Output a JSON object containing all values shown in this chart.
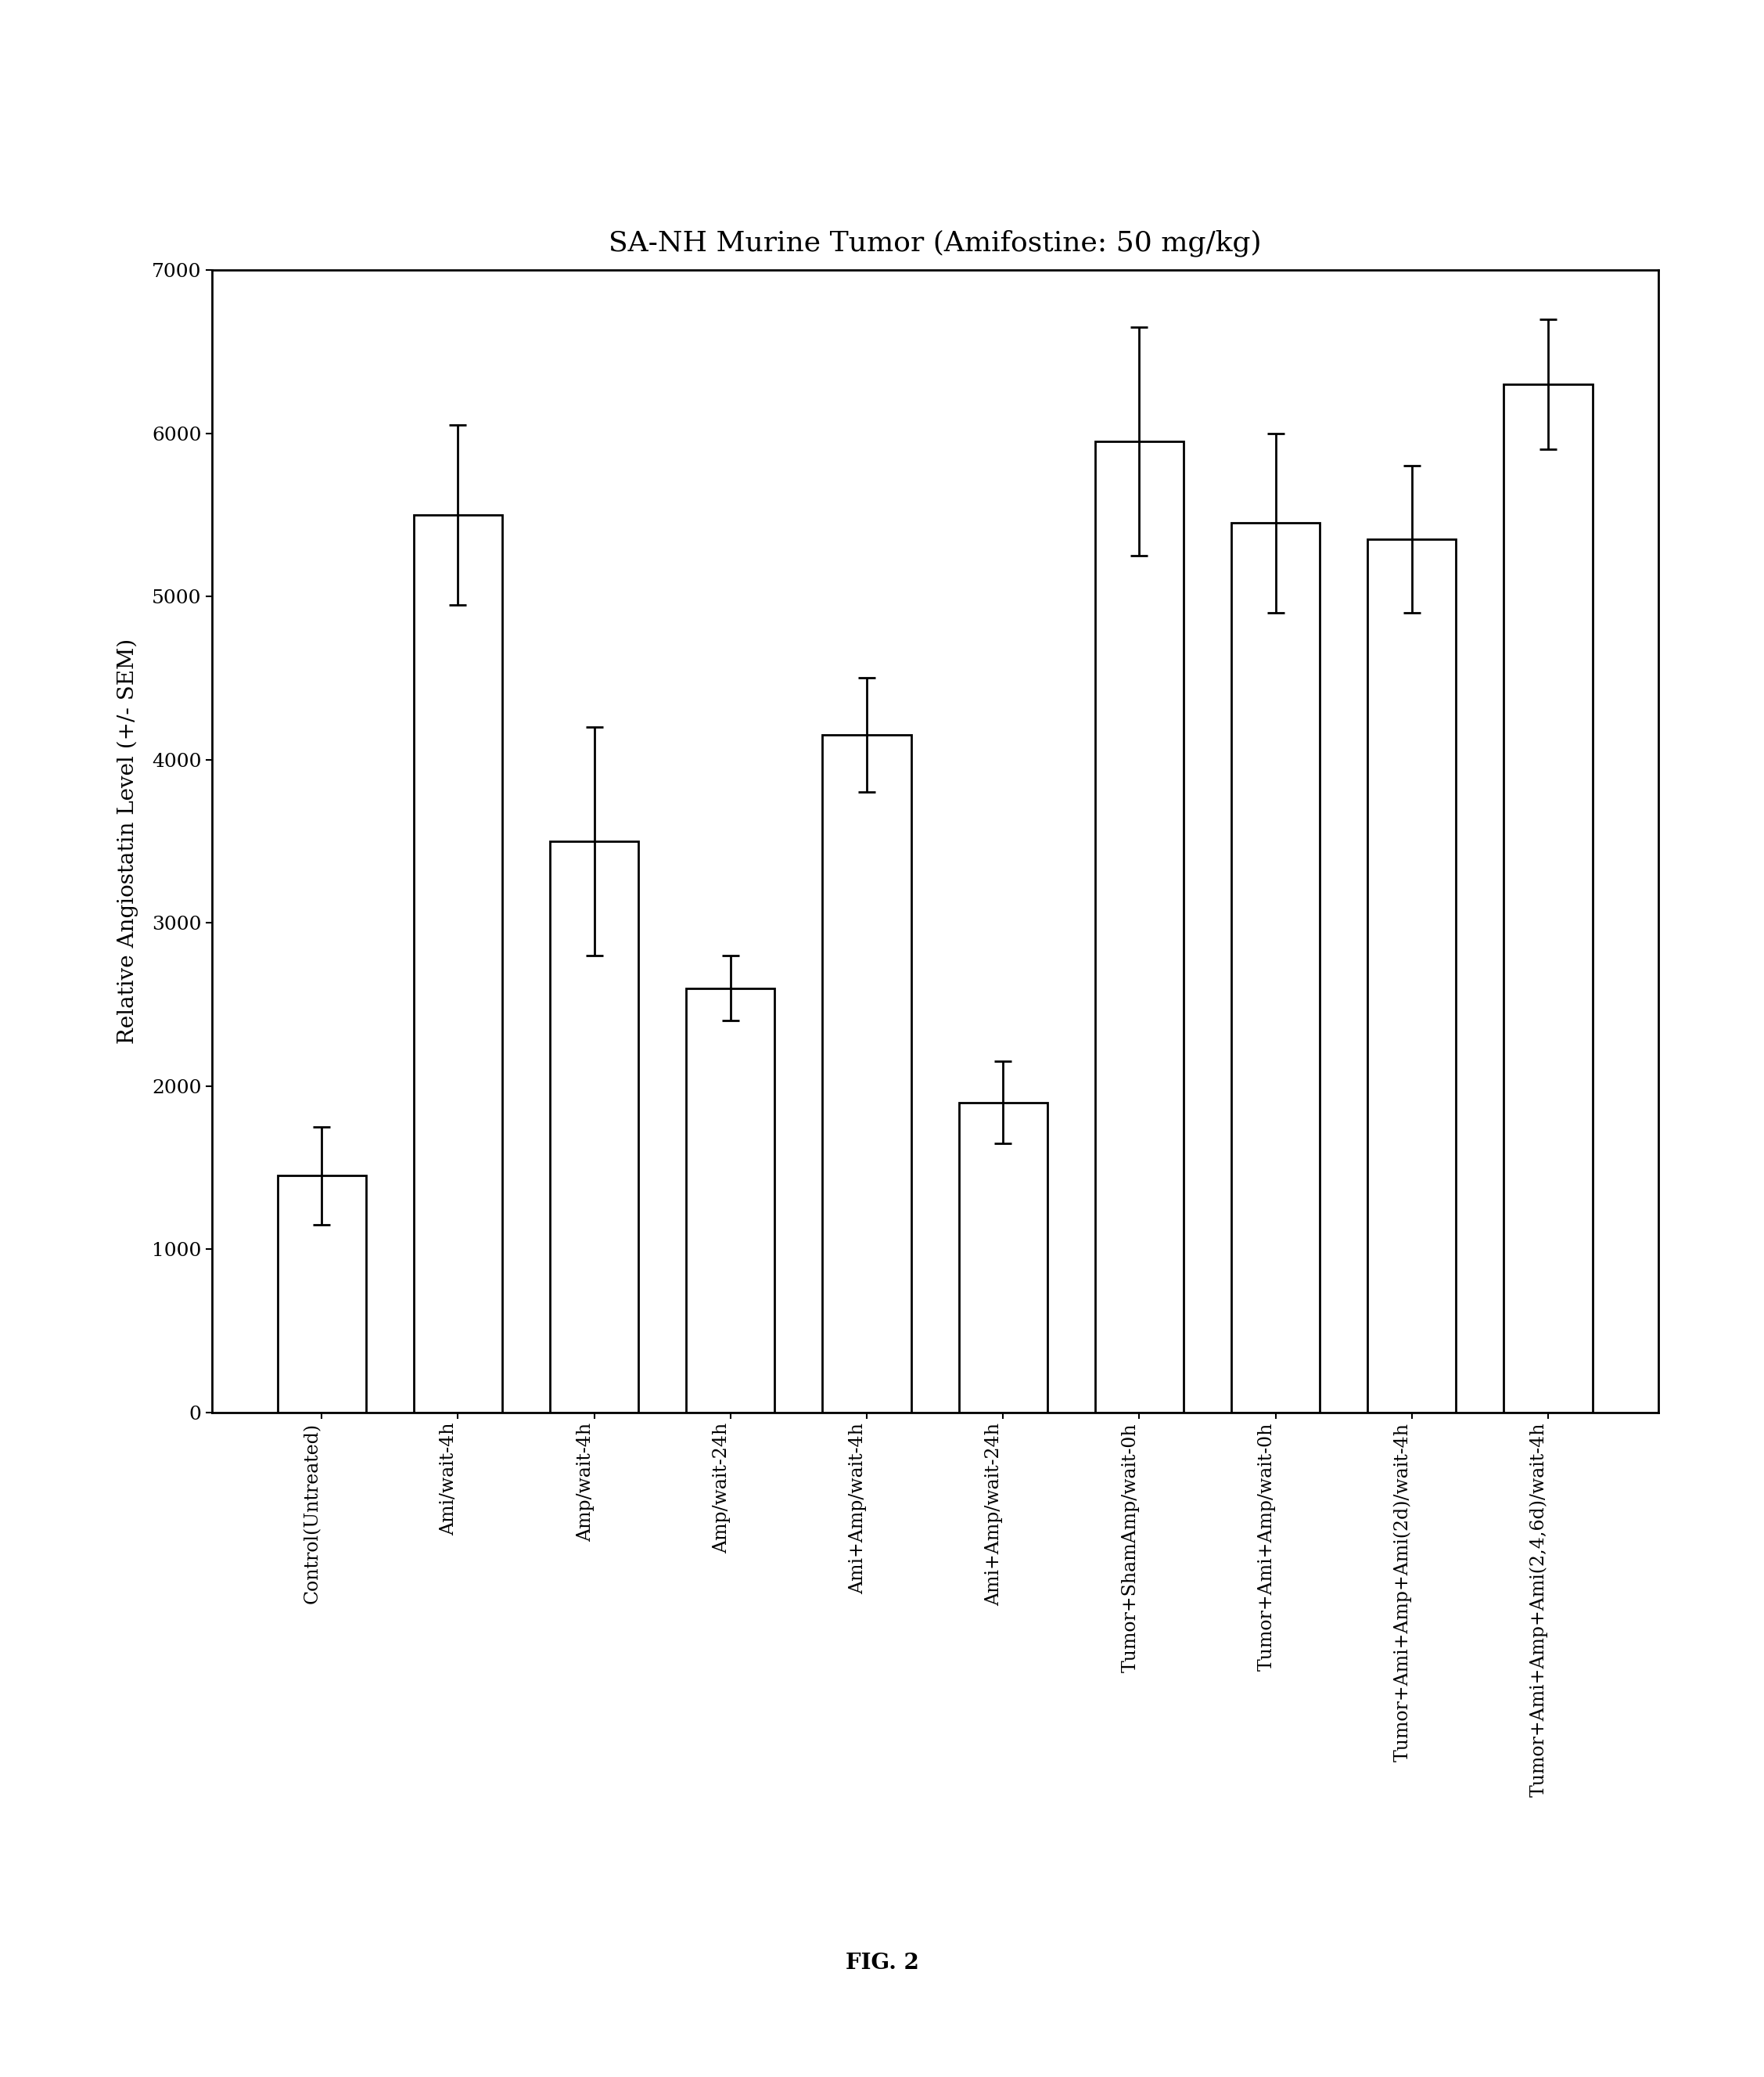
{
  "title": "SA-NH Murine Tumor (Amifostine: 50 mg/kg)",
  "ylabel": "Relative Angiostatin Level (+/- SEM)",
  "fig_label": "FIG. 2",
  "ylim": [
    0,
    7000
  ],
  "yticks": [
    0,
    1000,
    2000,
    3000,
    4000,
    5000,
    6000,
    7000
  ],
  "categories": [
    "Control(Untreated)",
    "Ami/wait-4h",
    "Amp/wait-4h",
    "Amp/wait-24h",
    "Ami+Amp/wait-4h",
    "Ami+Amp/wait-24h",
    "Tumor+ShamAmp/wait-0h",
    "Tumor+Ami+Amp/wait-0h",
    "Tumor+Ami+Amp+Ami(2d)/wait-4h",
    "Tumor+Ami+Amp+Ami(2,4,6d)/wait-4h"
  ],
  "values": [
    1450,
    5500,
    3500,
    2600,
    4150,
    1900,
    5950,
    5450,
    5350,
    6300
  ],
  "errors": [
    300,
    550,
    700,
    200,
    350,
    250,
    700,
    550,
    450,
    400
  ],
  "bar_color": "#ffffff",
  "bar_edgecolor": "#000000",
  "bar_linewidth": 2.0,
  "error_color": "#000000",
  "error_capsize": 8,
  "error_linewidth": 2.0,
  "background_color": "#ffffff",
  "title_fontsize": 26,
  "ylabel_fontsize": 20,
  "tick_fontsize": 18,
  "xtick_fontsize": 17,
  "fig_label_fontsize": 20,
  "bar_width": 0.65
}
